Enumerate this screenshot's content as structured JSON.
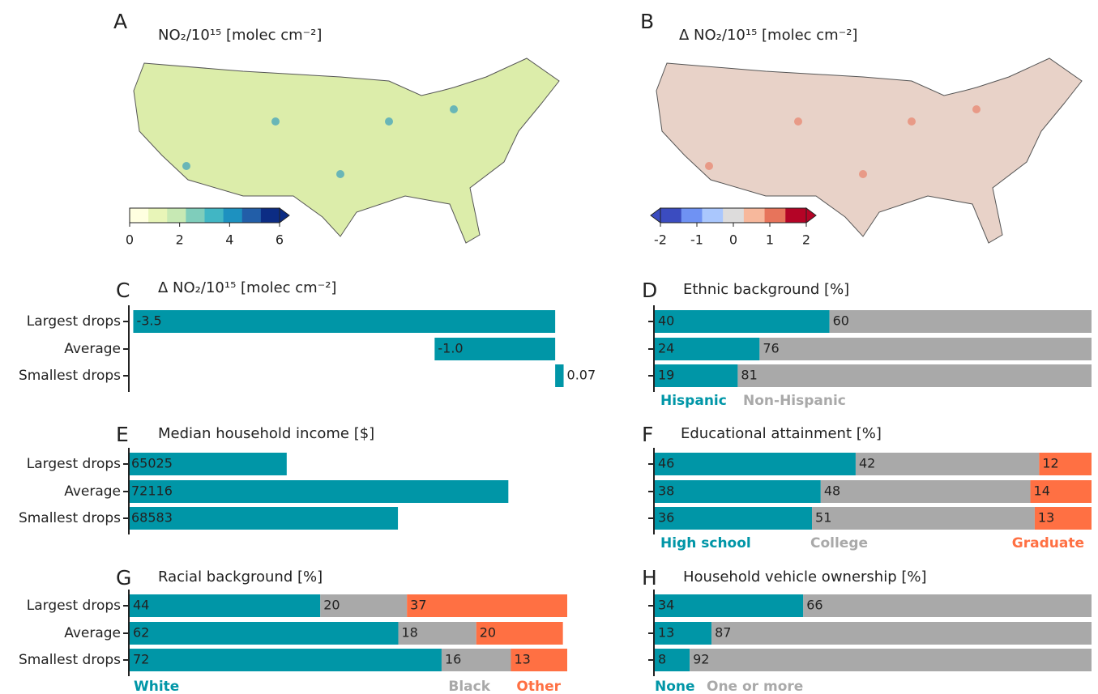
{
  "chart_data": [
    {
      "type": "map",
      "label": "A",
      "title": "NO₂/10¹⁵ [molec cm⁻²]",
      "clim": [
        0,
        6
      ],
      "ticks": [
        0,
        2,
        4,
        6
      ],
      "colormap": [
        "#ffffe0",
        "#e8f5b8",
        "#c7e9b4",
        "#7fcdbb",
        "#41b6c4",
        "#1d91c0",
        "#225ea8",
        "#0c2c84"
      ],
      "fill": "#dcedaa"
    },
    {
      "type": "map",
      "label": "B",
      "title": "Δ NO₂/10¹⁵ [molec cm⁻²]",
      "clim": [
        -2,
        2
      ],
      "ticks": [
        -2,
        -1,
        0,
        1,
        2
      ],
      "colormap": [
        "#3b4cc0",
        "#6f92f3",
        "#aac7fd",
        "#dddcdc",
        "#f7b89c",
        "#e7745b",
        "#b40426"
      ],
      "fill": "#e8d2c8"
    },
    {
      "type": "bar",
      "label": "C",
      "title": "Δ NO₂/10¹⁵ [molec cm⁻²]",
      "categories": [
        "Largest drops",
        "Average",
        "Smallest drops"
      ],
      "values": [
        -3.5,
        -1,
        0.07
      ],
      "value_labels": [
        "-3.5",
        "-1.0",
        "0.07"
      ],
      "color": "#0096a7",
      "xlim": [
        -3.53,
        0.1
      ]
    },
    {
      "type": "stacked_bar",
      "label": "D",
      "title": "Ethnic background [%]",
      "xlim": [
        0,
        100
      ],
      "series": [
        {
          "name": "Hispanic",
          "color": "#0096a7",
          "values": [
            40,
            24,
            19
          ]
        },
        {
          "name": "Non-Hispanic",
          "color": "#a9a9a9",
          "values": [
            60,
            76,
            81
          ]
        }
      ]
    },
    {
      "type": "bar",
      "label": "E",
      "title": "Median household income [$]",
      "categories": [
        "Largest drops",
        "Average",
        "Smallest drops"
      ],
      "values": [
        65025,
        72116,
        68583
      ],
      "color": "#0096a7",
      "xlim": [
        60000,
        74000
      ]
    },
    {
      "type": "stacked_bar",
      "label": "F",
      "title": "Educational attainment [%]",
      "xlim": [
        0,
        100
      ],
      "series": [
        {
          "name": "High school",
          "color": "#0096a7",
          "values": [
            46,
            38,
            36
          ]
        },
        {
          "name": "College",
          "color": "#a9a9a9",
          "values": [
            42,
            48,
            51
          ]
        },
        {
          "name": "Graduate",
          "color": "#ff7043",
          "values": [
            12,
            14,
            13
          ]
        }
      ]
    },
    {
      "type": "stacked_bar",
      "label": "G",
      "title": "Racial background [%]",
      "categories": [
        "Largest drops",
        "Average",
        "Smallest drops"
      ],
      "xlim": [
        0,
        101
      ],
      "series": [
        {
          "name": "White",
          "color": "#0096a7",
          "values": [
            44,
            62,
            72
          ]
        },
        {
          "name": "Black",
          "color": "#a9a9a9",
          "values": [
            20,
            18,
            16
          ]
        },
        {
          "name": "Other",
          "color": "#ff7043",
          "values": [
            37,
            20,
            13
          ]
        }
      ]
    },
    {
      "type": "stacked_bar",
      "label": "H",
      "title": "Household vehicle ownership [%]",
      "xlim": [
        0,
        100
      ],
      "series": [
        {
          "name": "None",
          "color": "#0096a7",
          "values": [
            34,
            13,
            8
          ]
        },
        {
          "name": "One or more",
          "color": "#a9a9a9",
          "values": [
            66,
            87,
            92
          ]
        }
      ]
    }
  ]
}
